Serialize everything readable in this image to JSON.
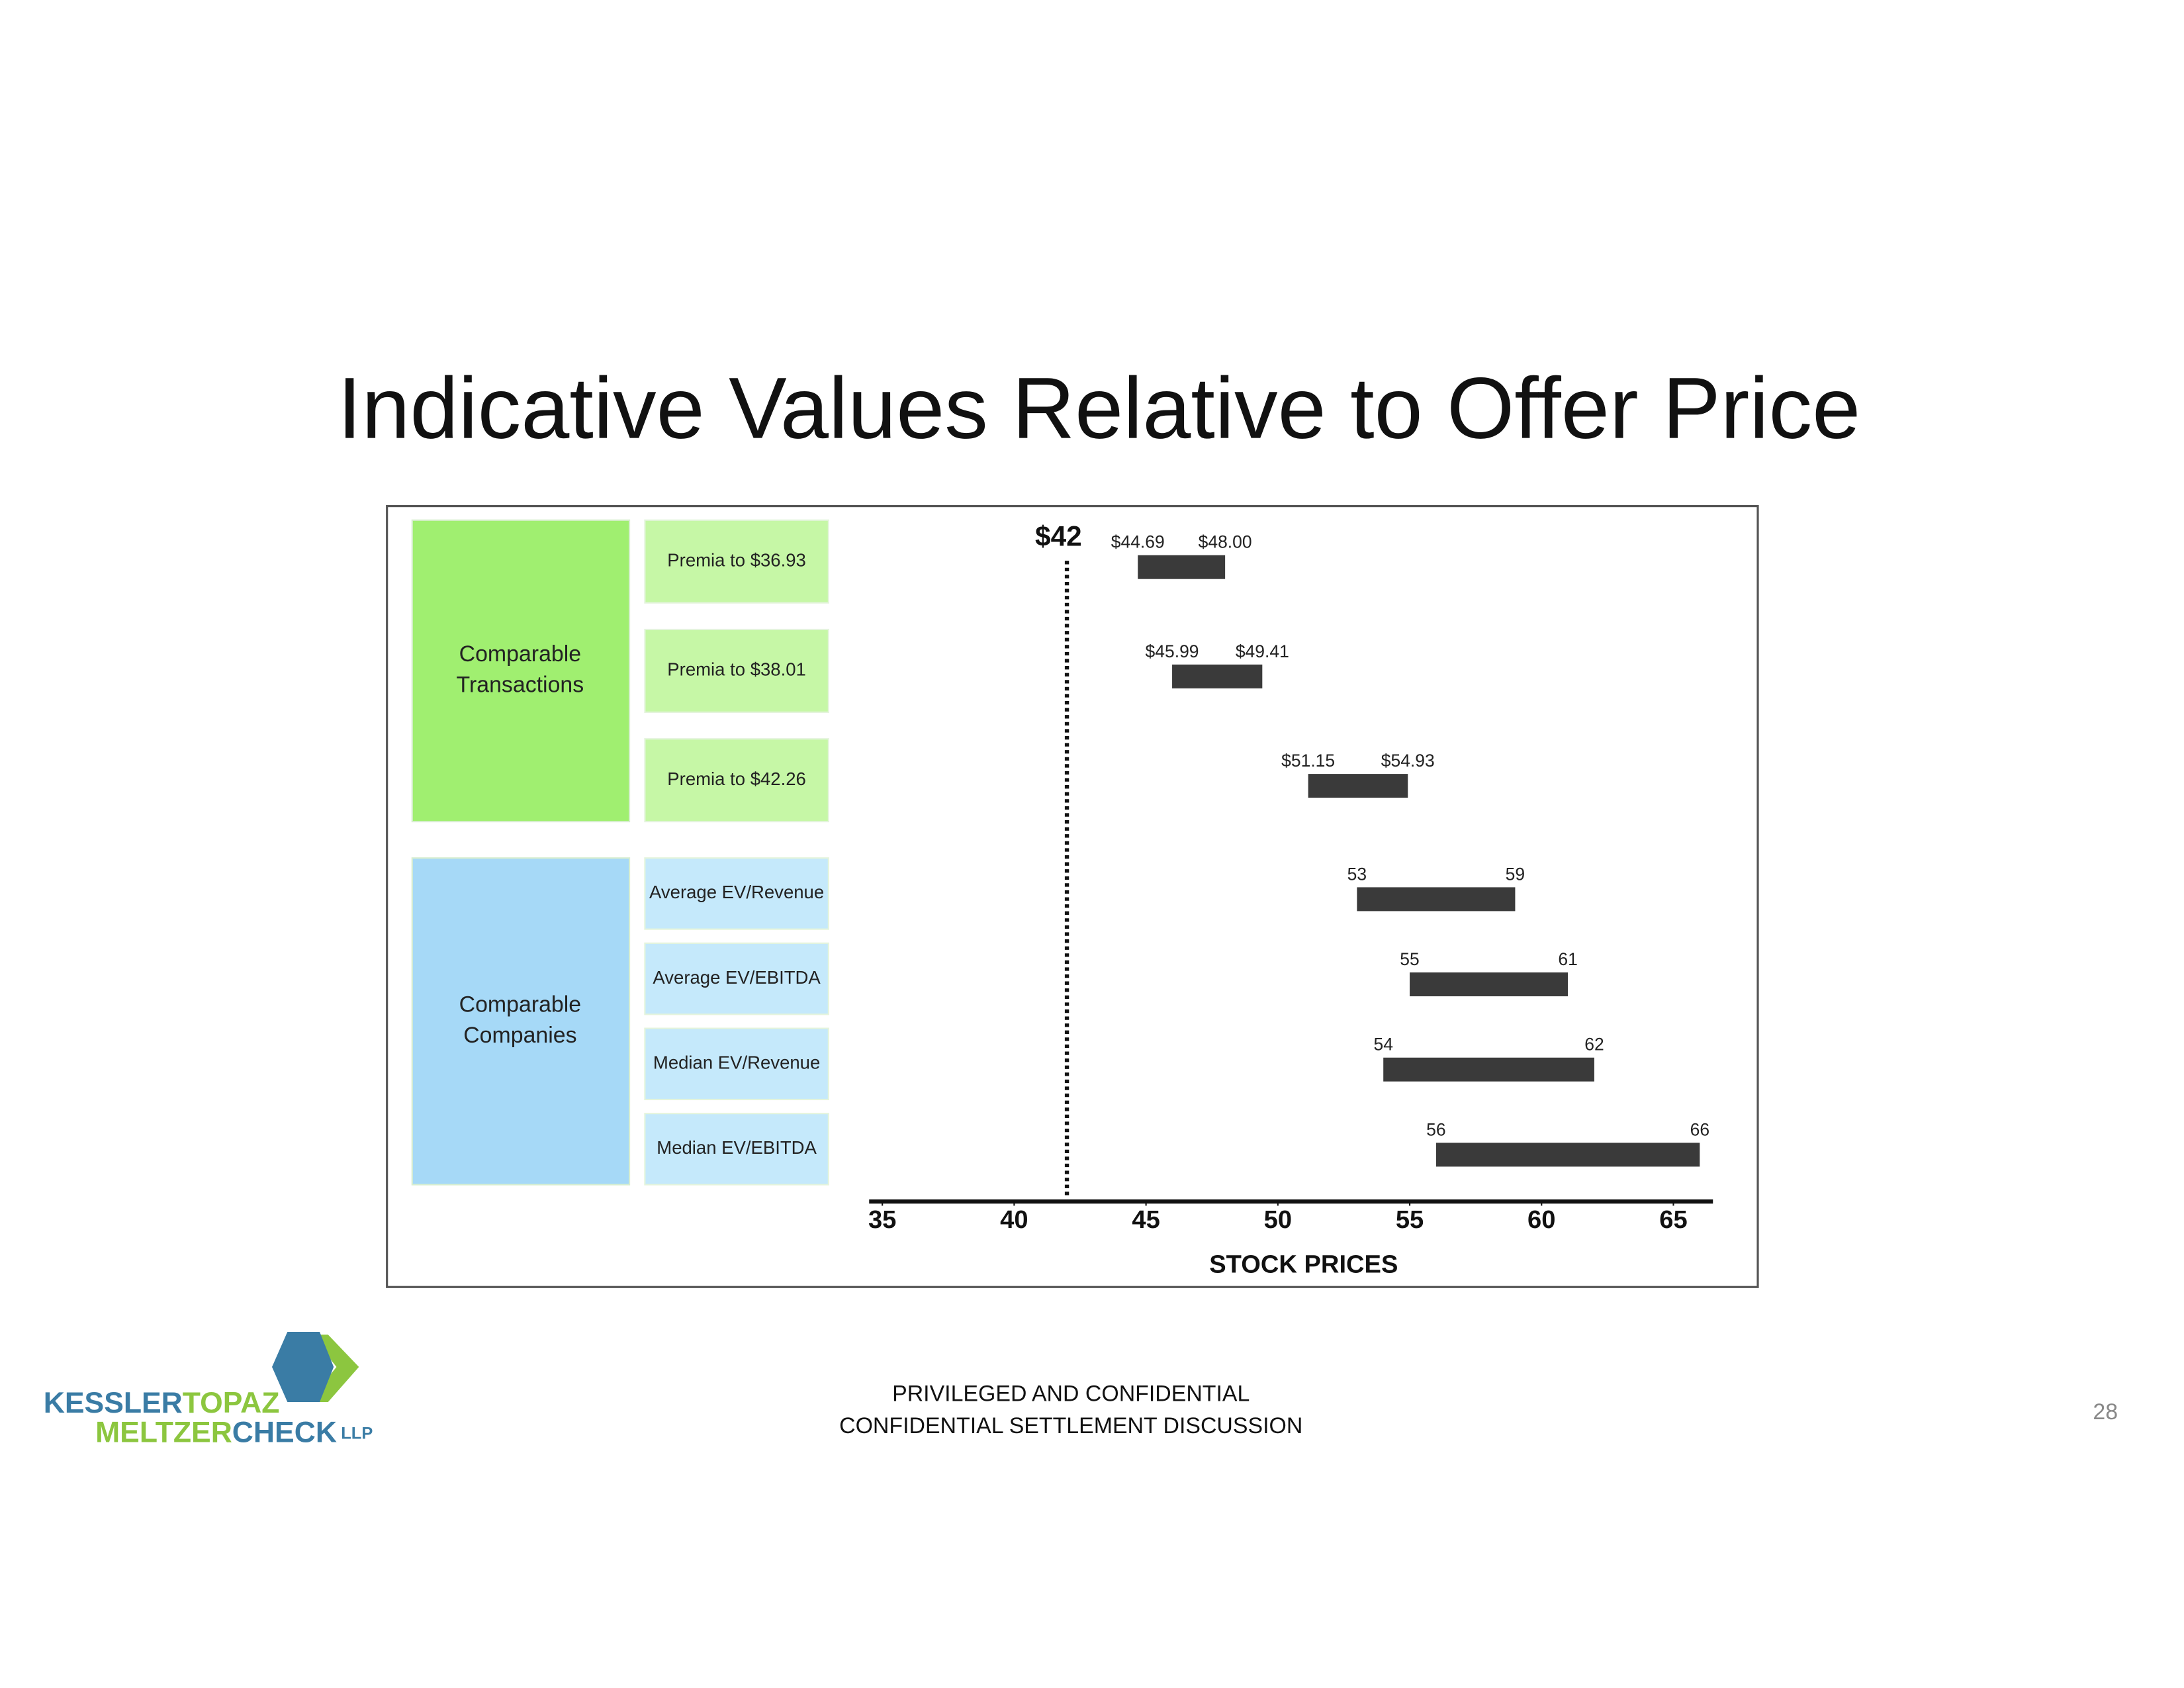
{
  "chart_data": {
    "type": "range-bar",
    "title": "Indicative Values Relative to Offer Price",
    "groups": [
      {
        "label": [
          "Comparable",
          "Transactions"
        ],
        "color": "#a0ef70",
        "row_color": "#c6f7a6",
        "rows": [
          {
            "label": "Premia to $36.93",
            "low": 44.69,
            "high": 48.0,
            "low_label": "$44.69",
            "high_label": "$48.00"
          },
          {
            "label": "Premia to $38.01",
            "low": 45.99,
            "high": 49.41,
            "low_label": "$45.99",
            "high_label": "$49.41"
          },
          {
            "label": "Premia to $42.26",
            "low": 51.15,
            "high": 54.93,
            "low_label": "$51.15",
            "high_label": "$54.93"
          }
        ]
      },
      {
        "label": [
          "Comparable",
          "Companies"
        ],
        "color": "#a6d9f7",
        "row_color": "#c5e9fb",
        "rows": [
          {
            "label": "Average EV/Revenue",
            "low": 53,
            "high": 59
          },
          {
            "label": "Average EV/EBITDA",
            "low": 55,
            "high": 61
          },
          {
            "label": "Median EV/Revenue",
            "low": 54,
            "high": 62
          },
          {
            "label": "Median EV/EBITDA",
            "low": 56,
            "high": 66
          }
        ]
      }
    ],
    "bar_color": "#3a3a3a",
    "reference": {
      "value": 42,
      "label": "$42"
    },
    "xlim": [
      34.5,
      66.5
    ],
    "xticks": [
      35,
      40,
      45,
      50,
      55,
      60,
      65
    ],
    "xlabel": "STOCK PRICES"
  },
  "footer": {
    "lines": [
      "PRIVILEGED AND CONFIDENTIAL",
      "CONFIDENTIAL SETTLEMENT DISCUSSION"
    ],
    "page": "28"
  },
  "logo": {
    "line1": [
      "KESSLER",
      "TOPAZ"
    ],
    "line2": [
      "MELTZER",
      "CHECK",
      "LLP"
    ]
  }
}
